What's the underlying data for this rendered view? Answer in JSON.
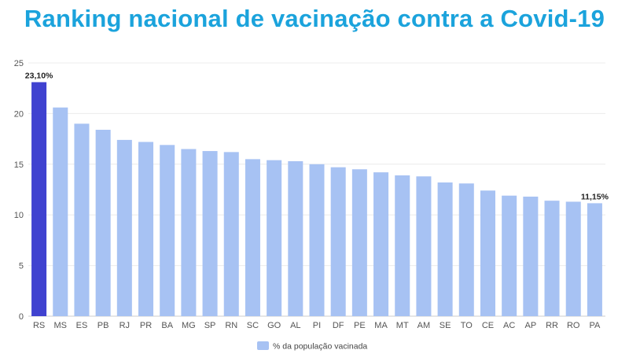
{
  "chart_data": {
    "type": "bar",
    "title": "Ranking nacional de vacinação contra a Covid-19",
    "xlabel": "",
    "ylabel": "",
    "ylim": [
      0,
      25
    ],
    "yticks": [
      0,
      5,
      10,
      15,
      20,
      25
    ],
    "grid": true,
    "legend_position": "bottom",
    "categories": [
      "RS",
      "MS",
      "ES",
      "PB",
      "RJ",
      "PR",
      "BA",
      "MG",
      "SP",
      "RN",
      "SC",
      "GO",
      "AL",
      "PI",
      "DF",
      "PE",
      "MA",
      "MT",
      "AM",
      "SE",
      "TO",
      "CE",
      "AC",
      "AP",
      "RR",
      "RO",
      "PA"
    ],
    "series": [
      {
        "name": "% da população vacinada",
        "values": [
          23.1,
          20.6,
          19.0,
          18.4,
          17.4,
          17.2,
          16.9,
          16.5,
          16.3,
          16.2,
          15.5,
          15.4,
          15.3,
          15.0,
          14.7,
          14.5,
          14.2,
          13.9,
          13.8,
          13.2,
          13.1,
          12.4,
          11.9,
          11.8,
          11.4,
          11.3,
          11.15
        ],
        "color": "#a7c2f3",
        "highlight_color": "#4042d0",
        "highlight_index": 0
      }
    ],
    "data_labels": [
      {
        "index": 0,
        "text": "23,10%"
      },
      {
        "index": 26,
        "text": "11,15%"
      }
    ]
  }
}
